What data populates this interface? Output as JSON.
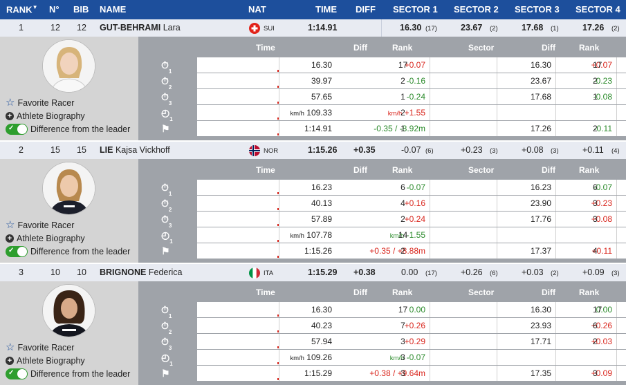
{
  "header": {
    "rank": "RANK",
    "rank_sort": "▼",
    "no": "N°",
    "bib": "BIB",
    "name": "NAME",
    "nat": "NAT",
    "time": "TIME",
    "diff": "DIFF",
    "s1": "SECTOR 1",
    "s2": "SECTOR 2",
    "s3": "SECTOR 3",
    "s4": "SECTOR 4"
  },
  "detail_header": {
    "time": "Time",
    "diff": "Diff",
    "rank": "Rank",
    "sector": "Sector",
    "sdiff": "Diff",
    "srank": "Rank"
  },
  "options": {
    "favorite": "Favorite Racer",
    "bio": "Athlete Biography",
    "diff_leader": "Difference from the leader"
  },
  "racers": [
    {
      "rank": "1",
      "no": "12",
      "bib": "12",
      "last": "GUT-BEHRAMI",
      "first": "Lara",
      "nat": "SUI",
      "time": "1:14.91",
      "diff": "",
      "s1": "16.30",
      "s1r": "(17)",
      "s2": "23.67",
      "s2r": "(2)",
      "s3": "17.68",
      "s3r": "(1)",
      "s4": "17.26",
      "s4r": "(2)",
      "rows": [
        {
          "icon": "1",
          "time": "16.30",
          "diff": "+0.07",
          "rank": "17",
          "sector": "16.30",
          "sdiff": "+0.07",
          "srank": "17"
        },
        {
          "icon": "2",
          "time": "39.97",
          "diff": "-0.16",
          "rank": "2",
          "sector": "23.67",
          "sdiff": "-0.23",
          "srank": "2"
        },
        {
          "icon": "3",
          "time": "57.65",
          "diff": "-0.24",
          "rank": "1",
          "sector": "17.68",
          "sdiff": "-0.08",
          "srank": "1"
        },
        {
          "icon": "1",
          "speed_unit": "km/h",
          "time": "109.33",
          "diff_unit": "km/h",
          "diff": "+1.55",
          "rank": "2",
          "sector": "",
          "sdiff": "",
          "srank": ""
        },
        {
          "icon": "",
          "time": "1:14.91",
          "diff": "-0.35 / -8.92m",
          "rank": "1",
          "sector": "17.26",
          "sdiff": "-0.11",
          "srank": "2"
        }
      ]
    },
    {
      "rank": "2",
      "no": "15",
      "bib": "15",
      "last": "LIE",
      "first": "Kajsa Vickhoff",
      "nat": "NOR",
      "time": "1:15.26",
      "diff": "+0.35",
      "s1": "-0.07",
      "s1r": "(6)",
      "s2": "+0.23",
      "s2r": "(3)",
      "s3": "+0.08",
      "s3r": "(3)",
      "s4": "+0.11",
      "s4r": "(4)",
      "rows": [
        {
          "icon": "1",
          "time": "16.23",
          "diff": "-0.07",
          "rank": "6",
          "sector": "16.23",
          "sdiff": "-0.07",
          "srank": "6"
        },
        {
          "icon": "2",
          "time": "40.13",
          "diff": "+0.16",
          "rank": "4",
          "sector": "23.90",
          "sdiff": "+0.23",
          "srank": "3"
        },
        {
          "icon": "3",
          "time": "57.89",
          "diff": "+0.24",
          "rank": "2",
          "sector": "17.76",
          "sdiff": "+0.08",
          "srank": "3"
        },
        {
          "icon": "1",
          "speed_unit": "km/h",
          "time": "107.78",
          "diff_unit": "km/h",
          "diff": "-1.55",
          "rank": "14",
          "sector": "",
          "sdiff": "",
          "srank": ""
        },
        {
          "icon": "",
          "time": "1:15.26",
          "diff": "+0.35 / +8.88m",
          "rank": "2",
          "sector": "17.37",
          "sdiff": "+0.11",
          "srank": "4"
        }
      ]
    },
    {
      "rank": "3",
      "no": "10",
      "bib": "10",
      "last": "BRIGNONE",
      "first": "Federica",
      "nat": "ITA",
      "time": "1:15.29",
      "diff": "+0.38",
      "s1": "0.00",
      "s1r": "(17)",
      "s2": "+0.26",
      "s2r": "(6)",
      "s3": "+0.03",
      "s3r": "(2)",
      "s4": "+0.09",
      "s4r": "(3)",
      "rows": [
        {
          "icon": "1",
          "time": "16.30",
          "diff": "0.00",
          "rank": "17",
          "sector": "16.30",
          "sdiff": "0.00",
          "srank": "17"
        },
        {
          "icon": "2",
          "time": "40.23",
          "diff": "+0.26",
          "rank": "7",
          "sector": "23.93",
          "sdiff": "+0.26",
          "srank": "6"
        },
        {
          "icon": "3",
          "time": "57.94",
          "diff": "+0.29",
          "rank": "3",
          "sector": "17.71",
          "sdiff": "+0.03",
          "srank": "2"
        },
        {
          "icon": "1",
          "speed_unit": "km/h",
          "time": "109.26",
          "diff_unit": "km/h",
          "diff": "-0.07",
          "rank": "3",
          "sector": "",
          "sdiff": "",
          "srank": ""
        },
        {
          "icon": "",
          "time": "1:15.29",
          "diff": "+0.38 / +9.64m",
          "rank": "3",
          "sector": "17.35",
          "sdiff": "+0.09",
          "srank": "3"
        }
      ]
    }
  ],
  "colors": {
    "header_bg": "#1d4f9c",
    "positive": "#d9251c",
    "negative": "#2a8a2a",
    "toggle_on": "#2e9e2e"
  }
}
